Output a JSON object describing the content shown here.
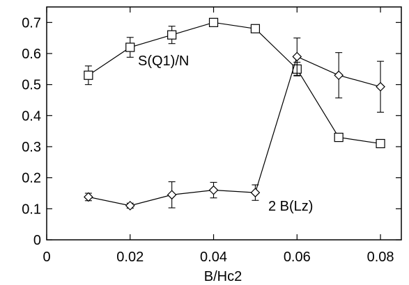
{
  "chart_data": {
    "type": "scatter",
    "title": "",
    "xlabel": "B/Hc2",
    "ylabel": "",
    "xlim": [
      0,
      0.085
    ],
    "ylim": [
      0,
      0.75
    ],
    "xticks": [
      0,
      0.02,
      0.04,
      0.06,
      0.08
    ],
    "xtick_labels": [
      "0",
      "0.02",
      "0.04",
      "0.06",
      "0.08"
    ],
    "yticks": [
      0,
      0.1,
      0.2,
      0.3,
      0.4,
      0.5,
      0.6,
      0.7
    ],
    "ytick_labels": [
      "0",
      "0.1",
      "0.2",
      "0.3",
      "0.4",
      "0.5",
      "0.6",
      "0.7"
    ],
    "grid": false,
    "legend": "none",
    "series": [
      {
        "name": "S(Q1)/N",
        "marker": "square",
        "color": "#000000",
        "points": [
          {
            "x": 0.01,
            "y": 0.53,
            "err": 0.03
          },
          {
            "x": 0.02,
            "y": 0.62,
            "err": 0.032
          },
          {
            "x": 0.03,
            "y": 0.66,
            "err": 0.028
          },
          {
            "x": 0.04,
            "y": 0.7,
            "err": 0.012
          },
          {
            "x": 0.05,
            "y": 0.68,
            "err": 0.01
          },
          {
            "x": 0.06,
            "y": 0.55,
            "err": 0.022
          },
          {
            "x": 0.07,
            "y": 0.33,
            "err": 0.008
          },
          {
            "x": 0.08,
            "y": 0.31,
            "err": 0.008
          }
        ]
      },
      {
        "name": "2 B(Lz)",
        "marker": "diamond",
        "color": "#000000",
        "points": [
          {
            "x": 0.01,
            "y": 0.138,
            "err": 0.012
          },
          {
            "x": 0.02,
            "y": 0.11,
            "err": 0.008
          },
          {
            "x": 0.03,
            "y": 0.145,
            "err": 0.042
          },
          {
            "x": 0.04,
            "y": 0.16,
            "err": 0.025
          },
          {
            "x": 0.05,
            "y": 0.152,
            "err": 0.025
          },
          {
            "x": 0.06,
            "y": 0.59,
            "err": 0.06
          },
          {
            "x": 0.07,
            "y": 0.53,
            "err": 0.073
          },
          {
            "x": 0.08,
            "y": 0.493,
            "err": 0.082
          }
        ]
      }
    ]
  }
}
